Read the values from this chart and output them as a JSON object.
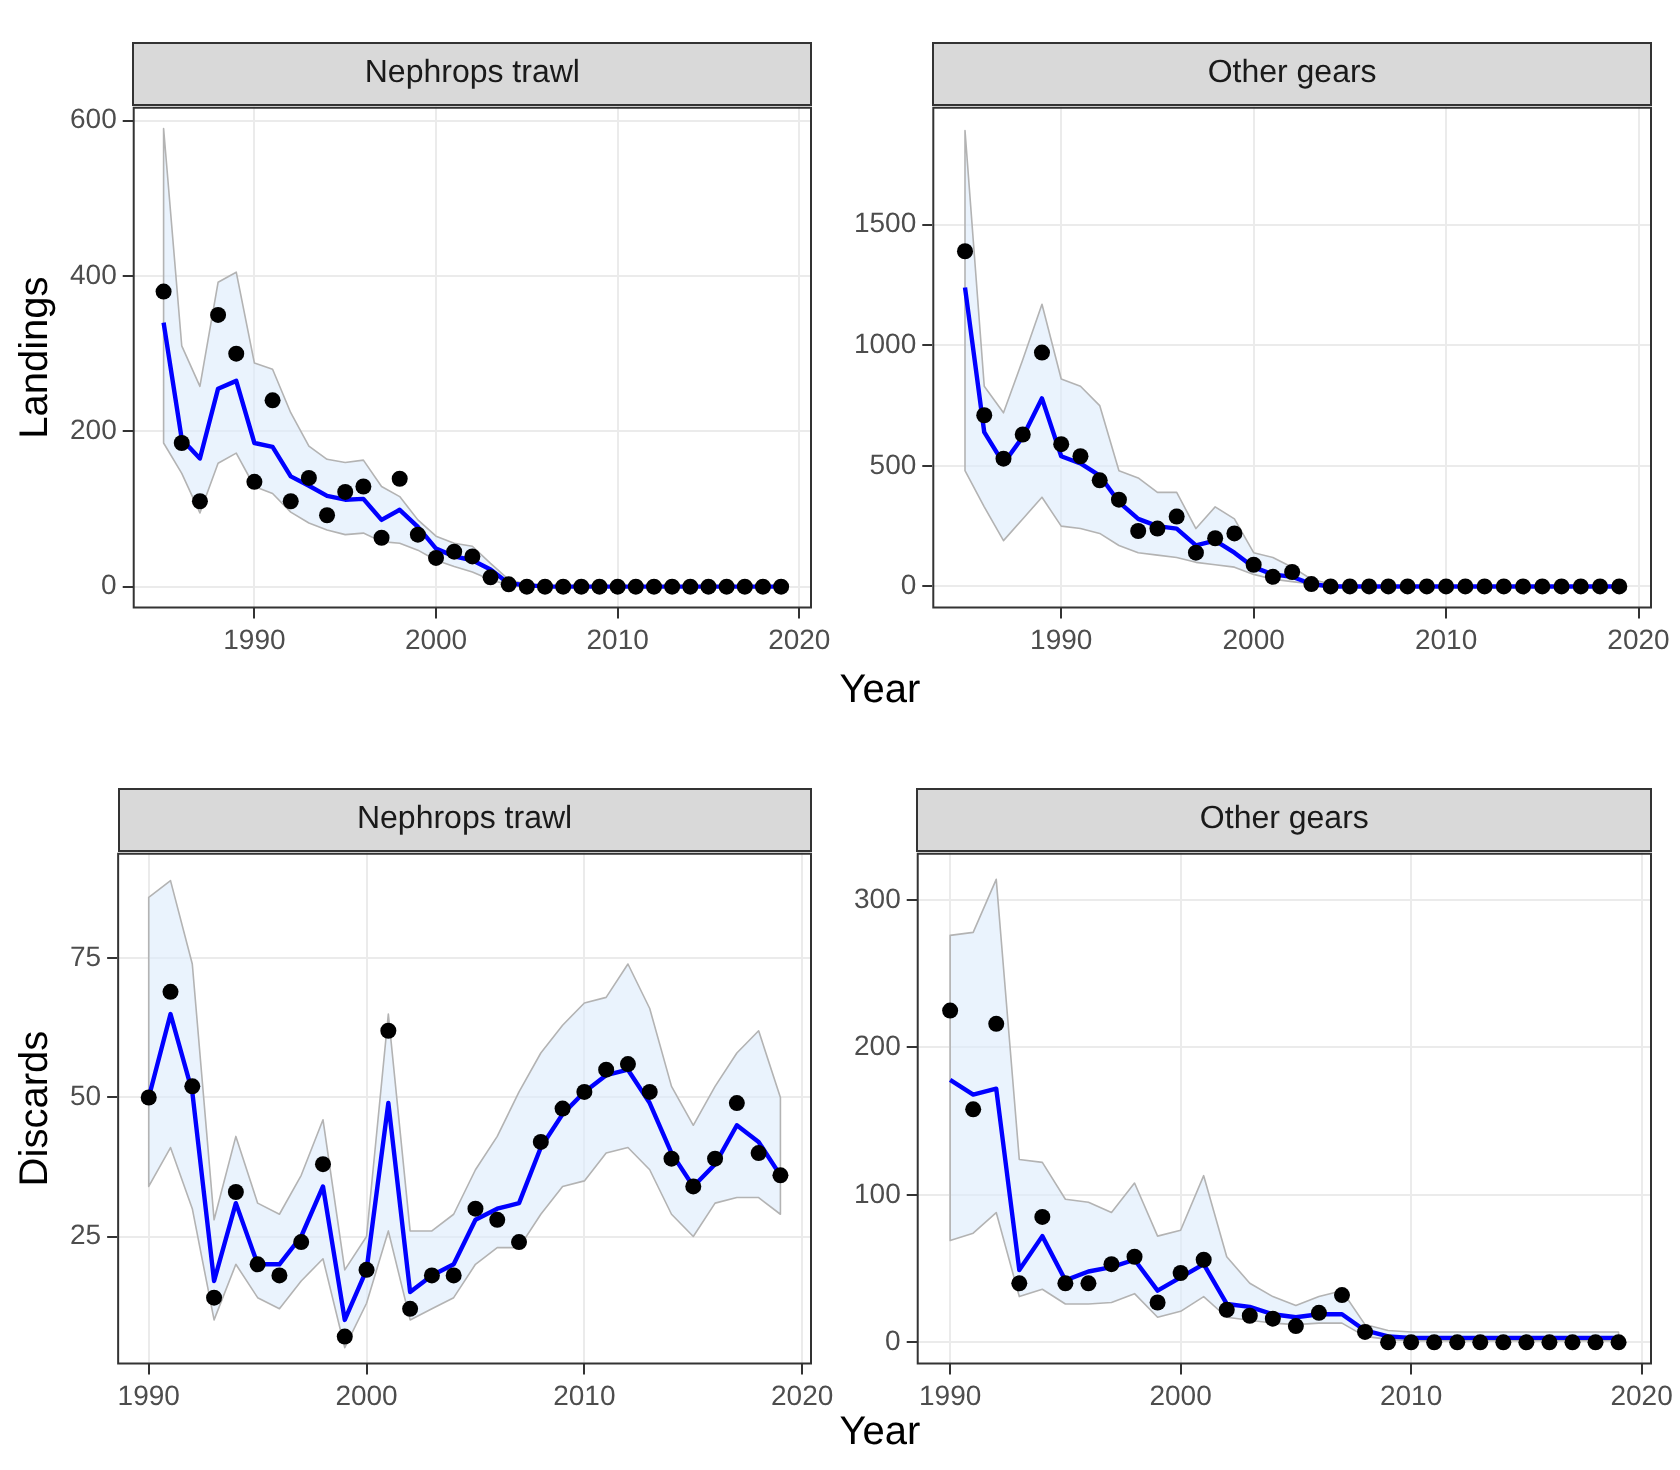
{
  "chart_data": [
    {
      "type": "line",
      "title": "Nephrops trawl",
      "ylabel": "Landings",
      "x": [
        1985,
        1986,
        1987,
        1988,
        1989,
        1990,
        1991,
        1992,
        1993,
        1994,
        1995,
        1996,
        1997,
        1998,
        1999,
        2000,
        2001,
        2002,
        2003,
        2004,
        2005,
        2006,
        2007,
        2008,
        2009,
        2010,
        2011,
        2012,
        2013,
        2014,
        2015,
        2016,
        2017,
        2018,
        2019
      ],
      "xlim": [
        1983.3,
        2020.7
      ],
      "xticks": [
        1990,
        2000,
        2010,
        2020
      ],
      "ylim": [
        -28,
        618
      ],
      "yticks": [
        0,
        200,
        400,
        600
      ],
      "grid": true,
      "series": [
        {
          "type": "line",
          "color": "#0000ff",
          "marker": "none",
          "values": [
            340,
            190,
            165,
            255,
            265,
            185,
            180,
            142,
            130,
            117,
            112,
            113,
            86,
            99,
            77,
            49,
            39,
            34,
            22,
            4,
            2,
            0,
            0,
            0,
            0,
            0,
            0,
            0,
            0,
            0,
            0,
            0,
            0,
            0,
            0
          ],
          "lower": [
            185,
            146,
            95,
            159,
            172,
            129,
            120,
            96,
            82,
            73,
            67,
            69,
            58,
            56,
            47,
            34,
            26,
            19,
            9,
            2,
            0,
            0,
            0,
            0,
            0,
            0,
            0,
            0,
            0,
            0,
            0,
            0,
            0,
            0,
            0
          ],
          "upper": [
            590,
            310,
            258,
            392,
            405,
            288,
            280,
            224,
            181,
            164,
            160,
            163,
            129,
            116,
            86,
            65,
            56,
            52,
            30,
            9,
            3,
            1,
            1,
            1,
            1,
            1,
            1,
            1,
            1,
            1,
            1,
            1,
            1,
            1,
            1
          ]
        },
        {
          "type": "scatter",
          "color": "#000000",
          "marker": "circle",
          "values": [
            380,
            185,
            110,
            350,
            300,
            135,
            240,
            110,
            140,
            92,
            122,
            129,
            63,
            139,
            67,
            37,
            45,
            39,
            12,
            3,
            0,
            0,
            0,
            0,
            0,
            0,
            0,
            0,
            0,
            0,
            0,
            0,
            0,
            0,
            0
          ]
        }
      ]
    },
    {
      "type": "line",
      "title": "Other gears",
      "xlabel": "Year",
      "x": [
        1985,
        1986,
        1987,
        1988,
        1989,
        1990,
        1991,
        1992,
        1993,
        1994,
        1995,
        1996,
        1997,
        1998,
        1999,
        2000,
        2001,
        2002,
        2003,
        2004,
        2005,
        2006,
        2007,
        2008,
        2009,
        2010,
        2011,
        2012,
        2013,
        2014,
        2015,
        2016,
        2017,
        2018,
        2019
      ],
      "xlim": [
        1983.3,
        2020.7
      ],
      "xticks": [
        1990,
        2000,
        2010,
        2020
      ],
      "ylim": [
        -91,
        1989
      ],
      "yticks": [
        0,
        500,
        1000,
        1500
      ],
      "grid": true,
      "series": [
        {
          "type": "line",
          "color": "#0000ff",
          "marker": "none",
          "values": [
            1240,
            640,
            510,
            620,
            780,
            540,
            510,
            460,
            350,
            280,
            250,
            240,
            170,
            190,
            140,
            80,
            50,
            40,
            10,
            0,
            0,
            0,
            0,
            0,
            0,
            0,
            0,
            0,
            0,
            0,
            0,
            0,
            0,
            0,
            0
          ],
          "lower": [
            480,
            330,
            190,
            280,
            370,
            250,
            240,
            220,
            170,
            140,
            130,
            120,
            100,
            90,
            80,
            50,
            30,
            20,
            10,
            0,
            0,
            0,
            0,
            0,
            0,
            0,
            0,
            0,
            0,
            0,
            0,
            0,
            0,
            0,
            0
          ],
          "upper": [
            1890,
            830,
            720,
            940,
            1170,
            860,
            830,
            750,
            480,
            450,
            390,
            390,
            240,
            330,
            280,
            140,
            120,
            80,
            30,
            10,
            0,
            0,
            0,
            0,
            0,
            0,
            0,
            0,
            0,
            0,
            0,
            0,
            0,
            0,
            0
          ]
        },
        {
          "type": "scatter",
          "color": "#000000",
          "marker": "circle",
          "values": [
            1390,
            710,
            530,
            630,
            970,
            590,
            540,
            440,
            360,
            230,
            240,
            290,
            140,
            200,
            220,
            90,
            40,
            60,
            10,
            0,
            0,
            0,
            0,
            0,
            0,
            0,
            0,
            0,
            0,
            0,
            0,
            0,
            0,
            0,
            0
          ]
        }
      ]
    },
    {
      "type": "line",
      "title": "Nephrops trawl",
      "ylabel": "Discards",
      "x": [
        1990,
        1991,
        1992,
        1993,
        1994,
        1995,
        1996,
        1997,
        1998,
        1999,
        2000,
        2001,
        2002,
        2003,
        2004,
        2005,
        2006,
        2007,
        2008,
        2009,
        2010,
        2011,
        2012,
        2013,
        2014,
        2015,
        2016,
        2017,
        2018,
        2019
      ],
      "xlim": [
        1988.55,
        2020.45
      ],
      "xticks": [
        1990,
        2000,
        2010,
        2020
      ],
      "ylim": [
        2,
        94
      ],
      "yticks": [
        25,
        50,
        75
      ],
      "grid": true,
      "series": [
        {
          "type": "line",
          "color": "#0000ff",
          "marker": "none",
          "values": [
            50,
            65,
            51,
            17,
            31,
            20,
            20,
            25,
            34,
            10,
            19,
            49,
            15,
            18,
            20,
            28,
            30,
            31,
            41,
            47,
            51,
            54,
            55,
            49,
            40,
            34,
            38,
            45,
            42,
            36
          ],
          "lower": [
            34,
            41,
            30,
            10,
            20,
            14,
            12,
            17,
            21,
            5,
            13,
            26,
            10,
            12,
            14,
            20,
            23,
            23,
            29,
            34,
            35,
            40,
            41,
            37,
            29,
            25,
            31,
            32,
            32,
            29
          ],
          "upper": [
            86,
            89,
            74,
            28,
            43,
            31,
            29,
            36,
            46,
            19,
            25,
            65,
            26,
            26,
            29,
            37,
            43,
            51,
            58,
            63,
            67,
            68,
            74,
            66,
            52,
            45,
            52,
            58,
            62,
            50
          ]
        },
        {
          "type": "scatter",
          "color": "#000000",
          "marker": "circle",
          "values": [
            50,
            69,
            52,
            14,
            33,
            20,
            18,
            24,
            38,
            7,
            19,
            62,
            12,
            18,
            18,
            30,
            28,
            24,
            42,
            48,
            51,
            55,
            56,
            51,
            39,
            34,
            39,
            49,
            40,
            36
          ]
        }
      ]
    },
    {
      "type": "line",
      "title": "Other gears",
      "xlabel": "Year",
      "x": [
        1990,
        1991,
        1992,
        1993,
        1994,
        1995,
        1996,
        1997,
        1998,
        1999,
        2000,
        2001,
        2002,
        2003,
        2004,
        2005,
        2006,
        2007,
        2008,
        2009,
        2010,
        2011,
        2012,
        2013,
        2014,
        2015,
        2016,
        2017,
        2018,
        2019
      ],
      "xlim": [
        1988.55,
        2020.45
      ],
      "xticks": [
        1990,
        2000,
        2010,
        2020
      ],
      "ylim": [
        -15,
        332
      ],
      "yticks": [
        0,
        100,
        200,
        300
      ],
      "grid": true,
      "series": [
        {
          "type": "line",
          "color": "#0000ff",
          "marker": "none",
          "values": [
            178,
            168,
            172,
            49,
            72,
            42,
            48,
            51,
            56,
            35,
            44,
            53,
            26,
            24,
            19,
            17,
            19,
            19,
            8,
            4,
            3,
            3,
            3,
            3,
            3,
            3,
            3,
            3,
            3,
            3
          ],
          "lower": [
            69,
            74,
            88,
            31,
            36,
            26,
            26,
            27,
            33,
            17,
            21,
            31,
            17,
            15,
            13,
            12,
            13,
            13,
            4,
            2,
            1,
            1,
            1,
            1,
            1,
            1,
            1,
            1,
            1,
            1
          ],
          "upper": [
            276,
            278,
            314,
            124,
            122,
            97,
            95,
            88,
            108,
            72,
            76,
            113,
            58,
            40,
            31,
            25,
            31,
            35,
            12,
            8,
            7,
            7,
            7,
            7,
            7,
            7,
            7,
            7,
            7,
            7
          ]
        },
        {
          "type": "scatter",
          "color": "#000000",
          "marker": "circle",
          "values": [
            225,
            158,
            216,
            40,
            85,
            40,
            40,
            53,
            58,
            27,
            47,
            56,
            22,
            18,
            16,
            11,
            20,
            32,
            7,
            0,
            0,
            0,
            0,
            0,
            0,
            0,
            0,
            0,
            0,
            0
          ]
        }
      ]
    }
  ]
}
